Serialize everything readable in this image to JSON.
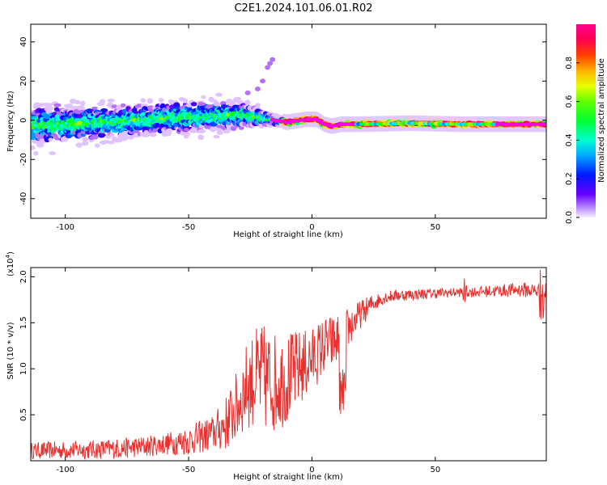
{
  "title": "C2E1.2024.101.06.01.R02",
  "chart_data": [
    {
      "type": "heatmap",
      "xlabel": "Height of straight line (km)",
      "ylabel": "Frequency (Hz)",
      "xlim": [
        -114,
        95
      ],
      "ylim": [
        -50,
        49
      ],
      "xticks": [
        -100,
        -50,
        0,
        50
      ],
      "yticks": [
        -40,
        -20,
        0,
        20,
        40
      ],
      "colorbar": {
        "label": "Normalized spectral amplitude",
        "ticks": [
          0.0,
          0.2,
          0.4,
          0.6,
          0.8
        ],
        "range": [
          0,
          1
        ],
        "colormap": "rainbow (purple to red)"
      },
      "band_center": [
        [
          -114,
          -3
        ],
        [
          -100,
          -2
        ],
        [
          -80,
          -1
        ],
        [
          -60,
          1
        ],
        [
          -50,
          1.5
        ],
        [
          -40,
          2
        ],
        [
          -30,
          3
        ],
        [
          -25,
          2
        ],
        [
          -20,
          1
        ],
        [
          -15,
          0
        ],
        [
          -10,
          -1
        ],
        [
          -5,
          0
        ],
        [
          -2,
          0.5
        ],
        [
          2,
          0.5
        ],
        [
          5,
          -2
        ],
        [
          8,
          -3
        ],
        [
          12,
          -2
        ],
        [
          20,
          -2
        ],
        [
          40,
          -1.5
        ],
        [
          60,
          -2
        ],
        [
          80,
          -2
        ],
        [
          95,
          -2
        ]
      ],
      "band_halfwidth": [
        [
          -114,
          10
        ],
        [
          -80,
          8
        ],
        [
          -50,
          8
        ],
        [
          -30,
          7
        ],
        [
          -20,
          4
        ],
        [
          -12,
          2
        ],
        [
          0,
          1.5
        ],
        [
          20,
          1.5
        ],
        [
          95,
          1.5
        ]
      ],
      "outliers": [
        [
          -16,
          31
        ],
        [
          -17,
          29
        ],
        [
          -18,
          27
        ],
        [
          -20,
          20
        ],
        [
          -22,
          16
        ],
        [
          -26,
          14
        ]
      ],
      "grid": false
    },
    {
      "type": "line",
      "xlabel": "Height of straight line (km)",
      "ylabel": "SNR (10 * v/v)",
      "y_multiplier": "(x10^4)",
      "xlim": [
        -114,
        95
      ],
      "ylim": [
        0,
        2.1
      ],
      "xticks": [
        -100,
        -50,
        0,
        50
      ],
      "yticks": [
        0.5,
        1.0,
        1.5,
        2.0
      ],
      "color": "#e8312f",
      "trend": [
        [
          -114,
          0.11
        ],
        [
          -90,
          0.12
        ],
        [
          -80,
          0.13
        ],
        [
          -70,
          0.15
        ],
        [
          -60,
          0.18
        ],
        [
          -50,
          0.22
        ],
        [
          -40,
          0.3
        ],
        [
          -35,
          0.4
        ],
        [
          -30,
          0.6
        ],
        [
          -27,
          0.8
        ],
        [
          -23,
          0.9
        ],
        [
          -20,
          0.9
        ],
        [
          -15,
          0.85
        ],
        [
          -10,
          0.9
        ],
        [
          -5,
          1.0
        ],
        [
          0,
          1.1
        ],
        [
          5,
          1.25
        ],
        [
          10,
          1.3
        ],
        [
          15,
          1.45
        ],
        [
          20,
          1.6
        ],
        [
          25,
          1.72
        ],
        [
          30,
          1.78
        ],
        [
          35,
          1.8
        ],
        [
          50,
          1.82
        ],
        [
          70,
          1.84
        ],
        [
          85,
          1.86
        ],
        [
          95,
          1.84
        ]
      ],
      "noise": [
        [
          -114,
          0.09
        ],
        [
          -60,
          0.12
        ],
        [
          -40,
          0.2
        ],
        [
          -30,
          0.4
        ],
        [
          -20,
          0.6
        ],
        [
          -10,
          0.5
        ],
        [
          0,
          0.35
        ],
        [
          10,
          0.3
        ],
        [
          20,
          0.15
        ],
        [
          28,
          0.07
        ],
        [
          60,
          0.05
        ],
        [
          85,
          0.08
        ],
        [
          95,
          0.1
        ]
      ],
      "grid": false
    }
  ]
}
